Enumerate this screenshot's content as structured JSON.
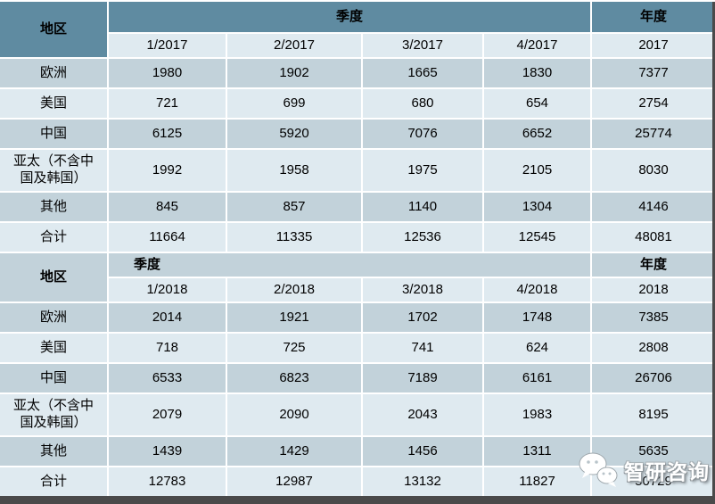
{
  "colors": {
    "header_teal": "#5f8ba1",
    "band_dark": "#c2d2da",
    "band_light": "#dfeaf0",
    "grid_line": "#ffffff",
    "text": "#000000",
    "edge_bar": "#4a4a4a",
    "watermark_text_color": "#ffffff"
  },
  "chart_data": {
    "type": "table",
    "title": "",
    "sections": [
      {
        "region_header": "地区",
        "quarter_header": "季度",
        "year_header": "年度",
        "sub_headers": [
          "1/2017",
          "2/2017",
          "3/2017",
          "4/2017",
          "2017"
        ],
        "rows": [
          {
            "region": "欧洲",
            "values": [
              "1980",
              "1902",
              "1665",
              "1830",
              "7377"
            ]
          },
          {
            "region": "美国",
            "values": [
              "721",
              "699",
              "680",
              "654",
              "2754"
            ]
          },
          {
            "region": "中国",
            "values": [
              "6125",
              "5920",
              "7076",
              "6652",
              "25774"
            ]
          },
          {
            "region": "亚太（不含中国及韩国）",
            "values": [
              "1992",
              "1958",
              "1975",
              "2105",
              "8030"
            ]
          },
          {
            "region": "其他",
            "values": [
              "845",
              "857",
              "1140",
              "1304",
              "4146"
            ]
          },
          {
            "region": "合计",
            "values": [
              "11664",
              "11335",
              "12536",
              "12545",
              "48081"
            ]
          }
        ]
      },
      {
        "region_header": "地区",
        "quarter_header": "季度",
        "year_header": "年度",
        "sub_headers": [
          "1/2018",
          "2/2018",
          "3/2018",
          "4/2018",
          "2018"
        ],
        "rows": [
          {
            "region": "欧洲",
            "values": [
              "2014",
              "1921",
              "1702",
              "1748",
              "7385"
            ]
          },
          {
            "region": "美国",
            "values": [
              "718",
              "725",
              "741",
              "624",
              "2808"
            ]
          },
          {
            "region": "中国",
            "values": [
              "6533",
              "6823",
              "7189",
              "6161",
              "26706"
            ]
          },
          {
            "region": "亚太（不含中国及韩国）",
            "values": [
              "2079",
              "2090",
              "2043",
              "1983",
              "8195"
            ]
          },
          {
            "region": "其他",
            "values": [
              "1439",
              "1429",
              "1456",
              "1311",
              "5635"
            ]
          },
          {
            "region": "合计",
            "values": [
              "12783",
              "12987",
              "13132",
              "11827",
              "50729"
            ]
          }
        ]
      }
    ]
  },
  "watermark": {
    "icon": "wechat-icon",
    "text": "智研咨询"
  }
}
